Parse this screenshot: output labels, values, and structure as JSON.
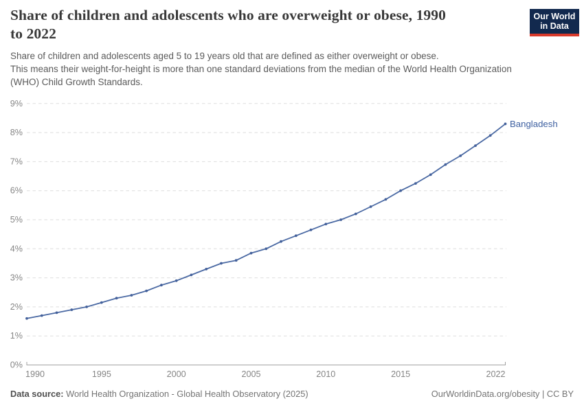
{
  "header": {
    "title_lines": [
      "Share of children and adolescents who are overweight or obese, 1990",
      "to 2022"
    ],
    "subtitle_lines": [
      "Share of children and adolescents aged 5 to 19 years old that are defined as either overweight or obese.",
      "This means their weight-for-height is more than one standard deviations from the median of the World Health Organization",
      "(WHO) Child Growth Standards."
    ]
  },
  "logo": {
    "line1": "Our World",
    "line2": "in Data",
    "bg_color": "#12294e",
    "stripe_color": "#d93a2b",
    "text_color": "#ffffff"
  },
  "chart_data": {
    "type": "line",
    "title": "Share of children and adolescents who are overweight or obese, 1990 to 2022",
    "entity_label": "Bangladesh",
    "xlabel": "",
    "ylabel": "",
    "x_range": [
      1990,
      2022
    ],
    "ylim": [
      0,
      9
    ],
    "y_ticks": [
      0,
      1,
      2,
      3,
      4,
      5,
      6,
      7,
      8,
      9
    ],
    "y_tick_suffix": "%",
    "x_ticks": [
      1990,
      1995,
      2000,
      2005,
      2010,
      2015,
      2022
    ],
    "grid": "horizontal-dashed",
    "legend_position": "end-of-line",
    "series": [
      {
        "name": "Bangladesh",
        "x": [
          1990,
          1991,
          1992,
          1993,
          1994,
          1995,
          1996,
          1997,
          1998,
          1999,
          2000,
          2001,
          2002,
          2003,
          2004,
          2005,
          2006,
          2007,
          2008,
          2009,
          2010,
          2011,
          2012,
          2013,
          2014,
          2015,
          2016,
          2017,
          2018,
          2019,
          2020,
          2021,
          2022
        ],
        "values": [
          1.6,
          1.7,
          1.8,
          1.9,
          2.0,
          2.15,
          2.3,
          2.4,
          2.55,
          2.75,
          2.9,
          3.1,
          3.3,
          3.5,
          3.6,
          3.85,
          4.0,
          4.25,
          4.45,
          4.65,
          4.85,
          5.0,
          5.2,
          5.45,
          5.7,
          6.0,
          6.25,
          6.55,
          6.9,
          7.2,
          7.55,
          7.9,
          8.3
        ]
      }
    ]
  },
  "colors": {
    "line": "#4a69a3",
    "marker": "#44619b",
    "entity_label": "#3d5fa0",
    "axis_text": "#858585",
    "gridline": "#dddddd",
    "axis_line": "#a0a0a0",
    "title_text": "#383838",
    "subtitle_text": "#5a5a5a",
    "footer_text": "#737373",
    "footer_label": "#4f4f4f"
  },
  "footer": {
    "source_label": "Data source:",
    "source_text": "World Health Organization - Global Health Observatory (2025)",
    "attribution": "OurWorldinData.org/obesity | CC BY"
  }
}
